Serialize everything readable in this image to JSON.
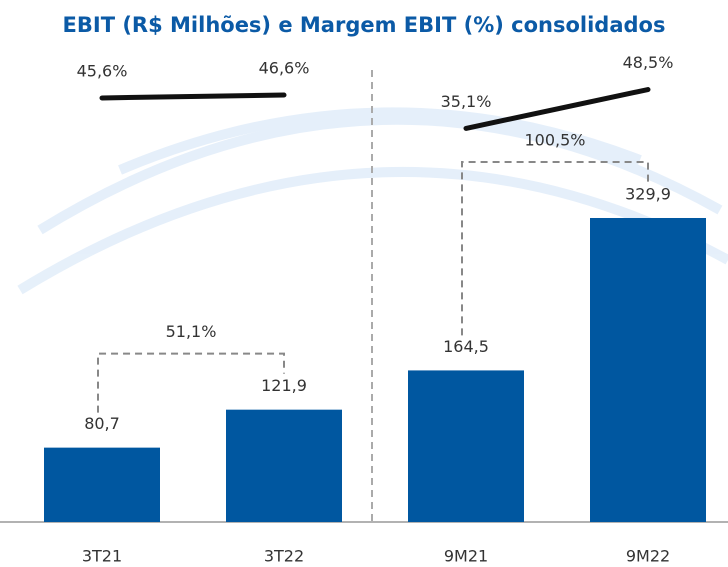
{
  "chart_data": {
    "type": "bar",
    "title": "EBIT (R$ Milhões) e Margem EBIT (%) consolidados",
    "categories": [
      "3T21",
      "3T22",
      "9M21",
      "9M22"
    ],
    "values": [
      80.7,
      121.9,
      164.5,
      329.9
    ],
    "value_labels": [
      "80,7",
      "121,9",
      "164,5",
      "329,9"
    ],
    "color": "#0057a0",
    "margin": {
      "values": [
        45.6,
        46.6,
        35.1,
        48.5
      ],
      "value_labels": [
        "45,6%",
        "46,6%",
        "35,1%",
        "48,5%"
      ],
      "color": "#111111"
    },
    "annotations": [
      "51,1%",
      "100,5%"
    ]
  }
}
